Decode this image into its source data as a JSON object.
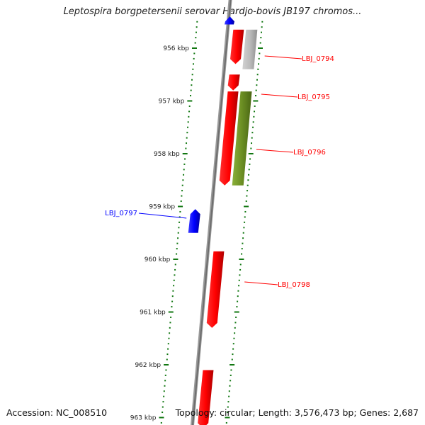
{
  "title": "Leptospira borgpetersenii serovar Hardjo-bovis JB197 chromos...",
  "footer": {
    "accession": "Accession: NC_008510",
    "summary": "Topology: circular; Length: 3,576,473 bp; Genes: 2,687"
  },
  "colors": {
    "forward_gene": "#ff0000",
    "reverse_gene": "#0000ff",
    "grey_feature": "#bbbbbb",
    "green_feature": "#6b8e23",
    "tick": "#117711",
    "backbone": "#808080"
  },
  "ticks": [
    {
      "kbp": 956,
      "label": "956 kbp"
    },
    {
      "kbp": 957,
      "label": "957 kbp"
    },
    {
      "kbp": 958,
      "label": "958 kbp"
    },
    {
      "kbp": 959,
      "label": "959 kbp"
    },
    {
      "kbp": 960,
      "label": "960 kbp"
    },
    {
      "kbp": 961,
      "label": "961 kbp"
    },
    {
      "kbp": 962,
      "label": "962 kbp"
    },
    {
      "kbp": 963,
      "label": "963 kbp"
    }
  ],
  "features": [
    {
      "name": "top-blue",
      "kind": "reverse_gene",
      "strand": "minus",
      "start": 955.4,
      "end": 955.55
    },
    {
      "name": "LBJ_0794",
      "kind": "forward_gene",
      "strand": "plus",
      "start": 955.65,
      "end": 956.3,
      "label": "LBJ_0794",
      "lane": 1
    },
    {
      "name": "grey",
      "kind": "grey_feature",
      "strand": "plus",
      "start": 955.65,
      "end": 956.4,
      "lane": 2
    },
    {
      "name": "LBJ_0795",
      "kind": "forward_gene",
      "strand": "plus",
      "start": 956.5,
      "end": 956.8,
      "label": "LBJ_0795",
      "lane": 1
    },
    {
      "name": "LBJ_0796",
      "kind": "forward_gene",
      "strand": "plus",
      "start": 956.82,
      "end": 958.6,
      "label": "LBJ_0796",
      "lane": 1
    },
    {
      "name": "green",
      "kind": "green_feature",
      "strand": "plus",
      "start": 956.82,
      "end": 958.6,
      "lane": 2
    },
    {
      "name": "LBJ_0797",
      "kind": "reverse_gene",
      "strand": "minus",
      "start": 959.05,
      "end": 959.5,
      "label": "LBJ_0797"
    },
    {
      "name": "LBJ_0798",
      "kind": "forward_gene",
      "strand": "plus",
      "start": 959.85,
      "end": 961.3,
      "label": "LBJ_0798",
      "lane": 1
    },
    {
      "name": "bottom-red",
      "kind": "forward_gene",
      "strand": "plus",
      "start": 962.1,
      "end": 963.2,
      "lane": 1
    }
  ]
}
